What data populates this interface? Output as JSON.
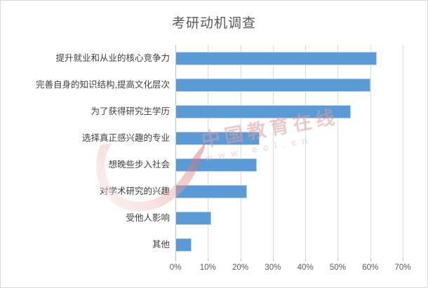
{
  "watermark": {
    "brand": "中国教育在线",
    "url": "www.eol.cn"
  },
  "colors": {
    "bar_fill": "#5b9bd5",
    "bar_edge": "#b4d0ec",
    "gridline": "#d9d9d9",
    "axis_line": "#bfbfbf",
    "title_text": "#595959",
    "category_text": "#3f3f3f",
    "tick_text": "#595959",
    "frame_border": "#d9d9d9",
    "watermark_red": "#dd9e9e"
  },
  "chart_data": {
    "type": "bar",
    "orientation": "horizontal",
    "title": "考研动机调查",
    "categories": [
      "提升就业和从业的核心竞争力",
      "完善自身的知识结构,提高文化层次",
      "为了获得研究生学历",
      "选择真正感兴趣的专业",
      "想晚些步入社会",
      "对学术研究的兴趣",
      "受他人影响",
      "其他"
    ],
    "values": [
      62,
      60,
      54,
      26,
      25,
      22,
      11,
      5
    ],
    "unit": "%",
    "xlabel": "",
    "ylabel": "",
    "x_axis": {
      "min": 0,
      "max": 70,
      "step": 10,
      "tick_labels": [
        "0%",
        "10%",
        "20%",
        "30%",
        "40%",
        "50%",
        "60%",
        "70%"
      ]
    },
    "grid": "vertical-on",
    "legend": "none"
  }
}
